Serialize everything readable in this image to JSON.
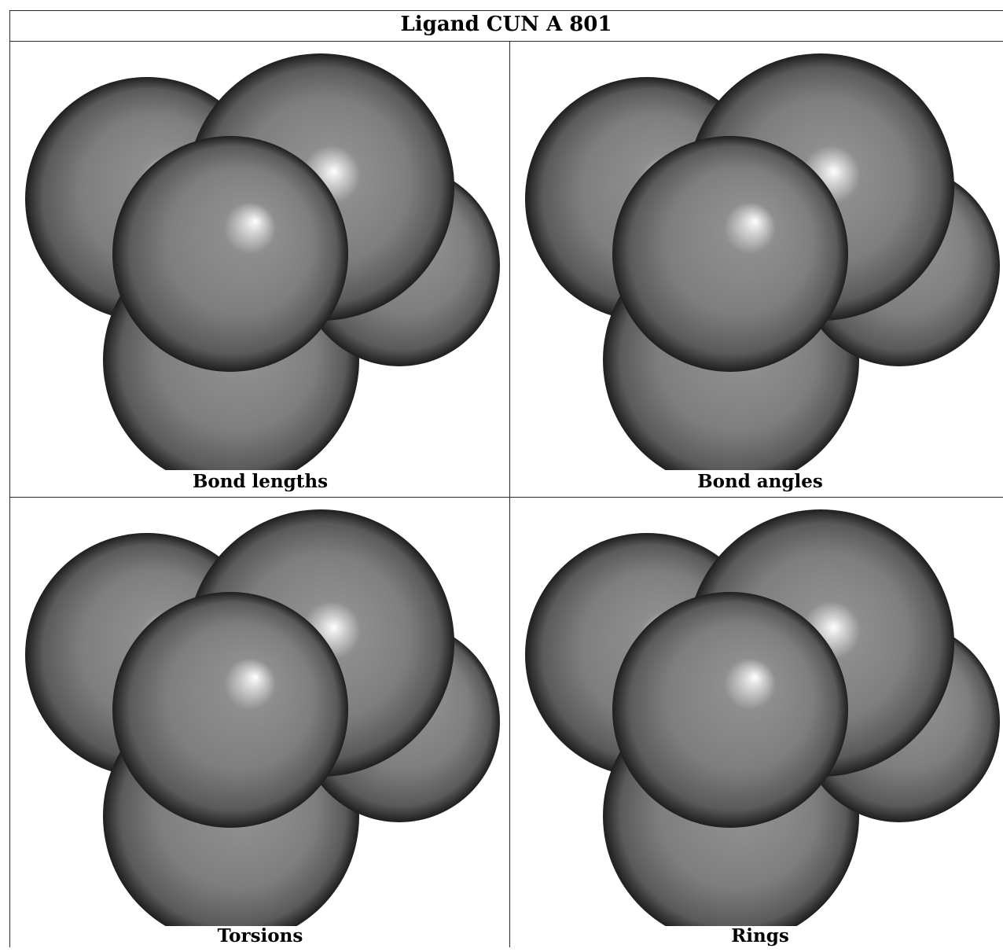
{
  "title": "Ligand CUN A 801",
  "panels": [
    {
      "caption": "Bond lengths"
    },
    {
      "caption": "Bond angles"
    },
    {
      "caption": "Torsions"
    },
    {
      "caption": "Rings"
    }
  ],
  "colors": {
    "sphere_base": "#7e7e7e",
    "sphere_edge": "#1e1e1e",
    "highlight": "#ffffff",
    "border": "#2a2a2a"
  }
}
